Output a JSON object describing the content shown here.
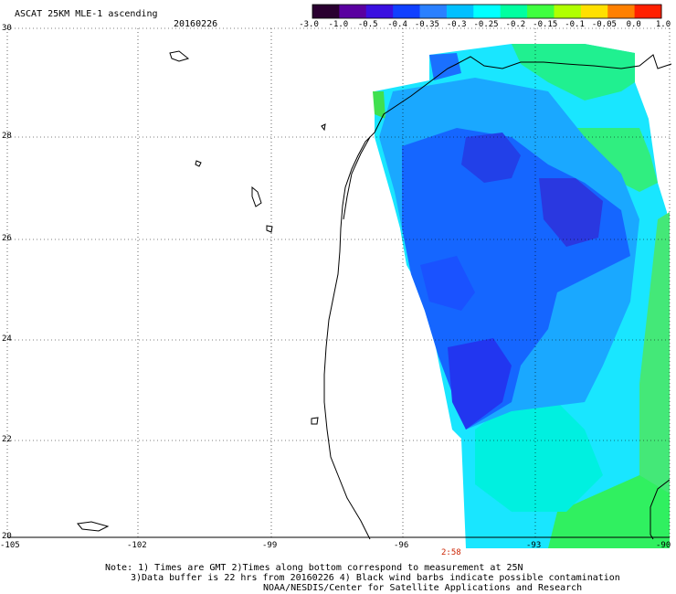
{
  "header": {
    "title": "ASCAT 25KM MLE-1 ascending",
    "date": "20160226"
  },
  "colorbar": {
    "labels": [
      "-3.0",
      "-1.0",
      "-0.5",
      "-0.4",
      "-0.35",
      "-0.3",
      "-0.25",
      "-0.2",
      "-0.15",
      "-0.1",
      "-0.05",
      "0.0",
      "1.0"
    ],
    "colors": [
      "#2a0030",
      "#5a00a0",
      "#3a10e0",
      "#1040ff",
      "#2a80ff",
      "#00c0ff",
      "#00ffff",
      "#00ffa0",
      "#40ff40",
      "#b0ff00",
      "#ffe000",
      "#ff8000",
      "#ff2000"
    ]
  },
  "axes": {
    "lat_labels": [
      "30",
      "28",
      "26",
      "24",
      "22",
      "20"
    ],
    "lon_labels": [
      "-105",
      "-102",
      "-99",
      "-96",
      "-93",
      "-90"
    ],
    "lat_range": [
      20,
      30
    ],
    "lon_range": [
      -105,
      -90
    ],
    "grid": "dotted"
  },
  "time_marker": {
    "label": "2:58",
    "color": "#cc2200",
    "lon": -95
  },
  "notes": {
    "line1": "Note: 1) Times are GMT 2)Times along bottom correspond to measurement at 25N",
    "line2": "3)Data buffer is 22 hrs from 20160226 4) Black wind barbs indicate possible contamination",
    "line3": "NOAA/NESDIS/Center for Satellite Applications and Research"
  }
}
